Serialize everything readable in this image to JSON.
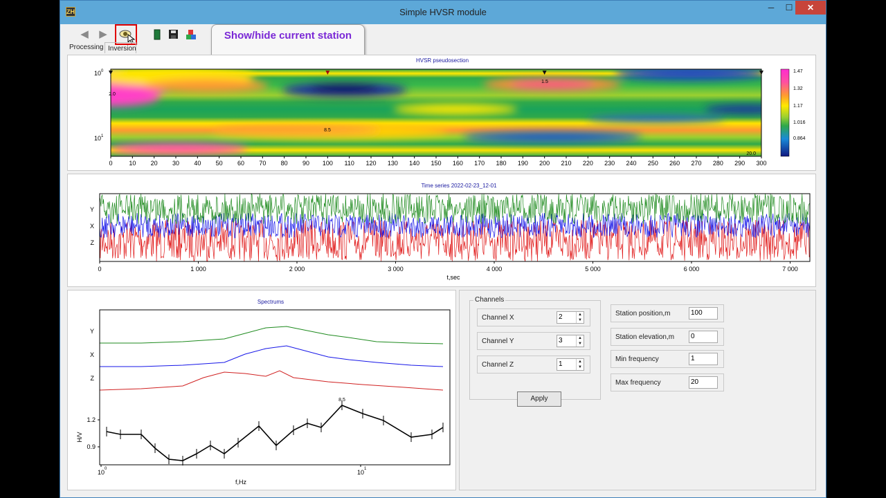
{
  "window": {
    "title": "Simple HVSR module",
    "app_icon": "ZH"
  },
  "toolbar": {
    "tabs": [
      "Processing",
      "Inversion"
    ],
    "icons": [
      "arrow-left-icon",
      "arrow-right-icon",
      "eye-icon",
      "battery-icon",
      "save-icon",
      "blocks-icon"
    ],
    "tooltip": "Show/hide current station"
  },
  "pseudosection": {
    "title": "HVSR pseudosection",
    "x_ticks": [
      0,
      10,
      20,
      30,
      40,
      50,
      60,
      70,
      80,
      90,
      100,
      110,
      120,
      130,
      140,
      150,
      160,
      170,
      180,
      190,
      200,
      210,
      220,
      230,
      240,
      250,
      260,
      270,
      280,
      290,
      300
    ],
    "y_labels": [
      "10",
      "10"
    ],
    "y_exponents": [
      "0",
      "1"
    ],
    "colorbar_ticks": [
      "1.47",
      "1.32",
      "1.17",
      "1.016",
      "0.864"
    ],
    "markers": [
      0,
      100,
      200,
      300
    ],
    "annotations": [
      "2.0",
      "1.5",
      "8.5",
      "20.0"
    ]
  },
  "timeseries": {
    "title": "Time series 2022-02-23_12-01",
    "channels": [
      "Y",
      "X",
      "Z"
    ],
    "x_ticks": [
      "0",
      "1 000",
      "2 000",
      "3 000",
      "4 000",
      "5 000",
      "6 000",
      "7 000"
    ],
    "xlabel": "t,sec",
    "colors": {
      "Y": "#1d8a1d",
      "X": "#1515e8",
      "Z": "#e01818"
    }
  },
  "spectrums": {
    "title": "Spectrums",
    "channels": [
      "Y",
      "X",
      "Z"
    ],
    "y_ticks": [
      "1.2",
      "0.9"
    ],
    "ylabel": "H/V",
    "xlabel": "f,Hz",
    "x_labels": [
      "10",
      "10"
    ],
    "x_exponents": [
      "0",
      "1"
    ],
    "peak_label": "8.5"
  },
  "channels_group": {
    "title": "Channels",
    "rows": [
      {
        "label": "Channel X",
        "value": "2"
      },
      {
        "label": "Channel Y",
        "value": "3"
      },
      {
        "label": "Channel Z",
        "value": "1"
      }
    ],
    "apply_label": "Apply"
  },
  "station": {
    "rows": [
      {
        "label": "Station position,m",
        "value": "100"
      },
      {
        "label": "Station elevation,m",
        "value": "0"
      },
      {
        "label": "Min frequency",
        "value": "1"
      },
      {
        "label": "Max frequency",
        "value": "20"
      }
    ]
  }
}
